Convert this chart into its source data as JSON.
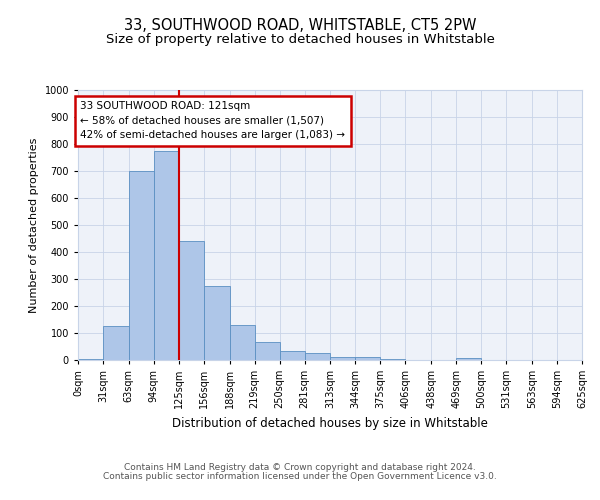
{
  "title1": "33, SOUTHWOOD ROAD, WHITSTABLE, CT5 2PW",
  "title2": "Size of property relative to detached houses in Whitstable",
  "xlabel": "Distribution of detached houses by size in Whitstable",
  "ylabel": "Number of detached properties",
  "bin_labels": [
    "0sqm",
    "31sqm",
    "63sqm",
    "94sqm",
    "125sqm",
    "156sqm",
    "188sqm",
    "219sqm",
    "250sqm",
    "281sqm",
    "313sqm",
    "344sqm",
    "375sqm",
    "406sqm",
    "438sqm",
    "469sqm",
    "500sqm",
    "531sqm",
    "563sqm",
    "594sqm",
    "625sqm"
  ],
  "bin_edges": [
    0,
    31,
    63,
    94,
    125,
    156,
    188,
    219,
    250,
    281,
    313,
    344,
    375,
    406,
    438,
    469,
    500,
    531,
    563,
    594,
    625
  ],
  "bar_heights": [
    5,
    125,
    700,
    775,
    440,
    275,
    130,
    65,
    35,
    25,
    12,
    12,
    5,
    0,
    0,
    8,
    0,
    0,
    0,
    0
  ],
  "bar_color": "#aec6e8",
  "bar_edge_color": "#5a8fc2",
  "red_line_x": 125,
  "ylim": [
    0,
    1000
  ],
  "yticks": [
    0,
    100,
    200,
    300,
    400,
    500,
    600,
    700,
    800,
    900,
    1000
  ],
  "annotation_title": "33 SOUTHWOOD ROAD: 121sqm",
  "annotation_line1": "← 58% of detached houses are smaller (1,507)",
  "annotation_line2": "42% of semi-detached houses are larger (1,083) →",
  "annotation_box_color": "#ffffff",
  "annotation_box_edge_color": "#cc0000",
  "footer1": "Contains HM Land Registry data © Crown copyright and database right 2024.",
  "footer2": "Contains public sector information licensed under the Open Government Licence v3.0.",
  "bg_color": "#eef2f9",
  "grid_color": "#c8d4e8",
  "title1_fontsize": 10.5,
  "title2_fontsize": 9.5,
  "axis_label_fontsize": 8,
  "tick_fontsize": 7,
  "annotation_fontsize": 7.5,
  "footer_fontsize": 6.5
}
